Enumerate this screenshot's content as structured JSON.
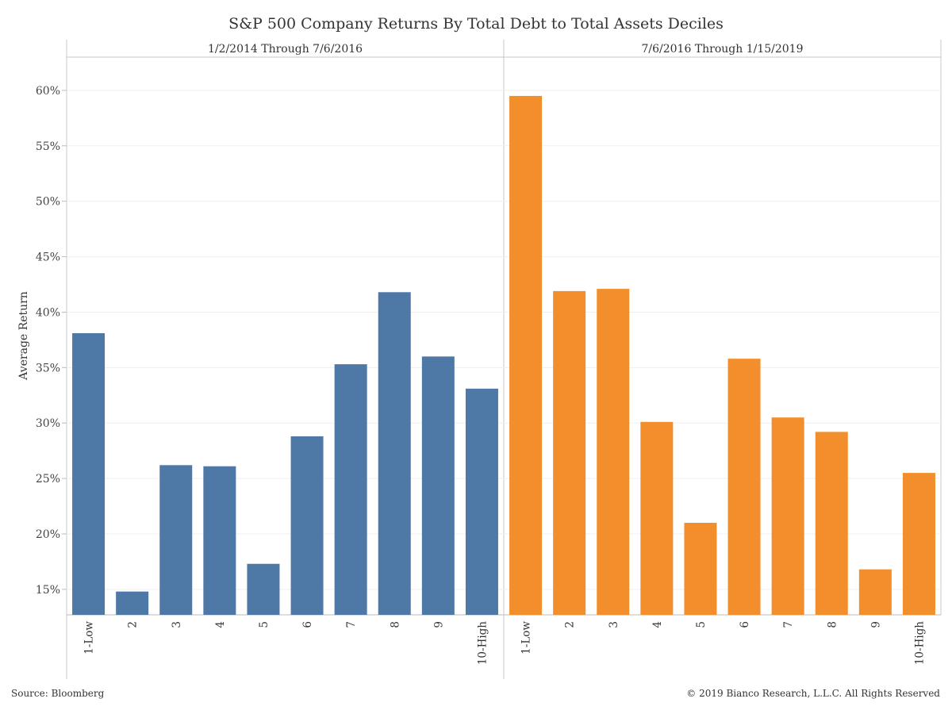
{
  "chart_data": {
    "type": "bar",
    "title": "S&P 500 Company Returns By Total Debt to Total Assets Deciles",
    "ylabel": "Average Return",
    "yticks": [
      "15%",
      "20%",
      "25%",
      "30%",
      "35%",
      "40%",
      "45%",
      "50%",
      "55%",
      "60%"
    ],
    "ylim": [
      12.7,
      63
    ],
    "grid": true,
    "panels": [
      {
        "title": "1/2/2014 Through 7/6/2016",
        "color": "#4e79a7",
        "categories": [
          "1-Low",
          "2",
          "3",
          "4",
          "5",
          "6",
          "7",
          "8",
          "9",
          "10-High"
        ],
        "values": [
          38.1,
          14.8,
          26.2,
          26.1,
          17.3,
          28.8,
          35.3,
          41.8,
          36.0,
          33.1
        ]
      },
      {
        "title": "7/6/2016 Through 1/15/2019",
        "color": "#f28e2b",
        "categories": [
          "1-Low",
          "2",
          "3",
          "4",
          "5",
          "6",
          "7",
          "8",
          "9",
          "10-High"
        ],
        "values": [
          59.5,
          41.9,
          42.1,
          30.1,
          21.0,
          35.8,
          30.5,
          29.2,
          16.8,
          25.5
        ]
      }
    ]
  },
  "footer": {
    "source": "Source: Bloomberg",
    "copyright": "© 2019 Bianco Research, L.L.C. All Rights Reserved"
  }
}
